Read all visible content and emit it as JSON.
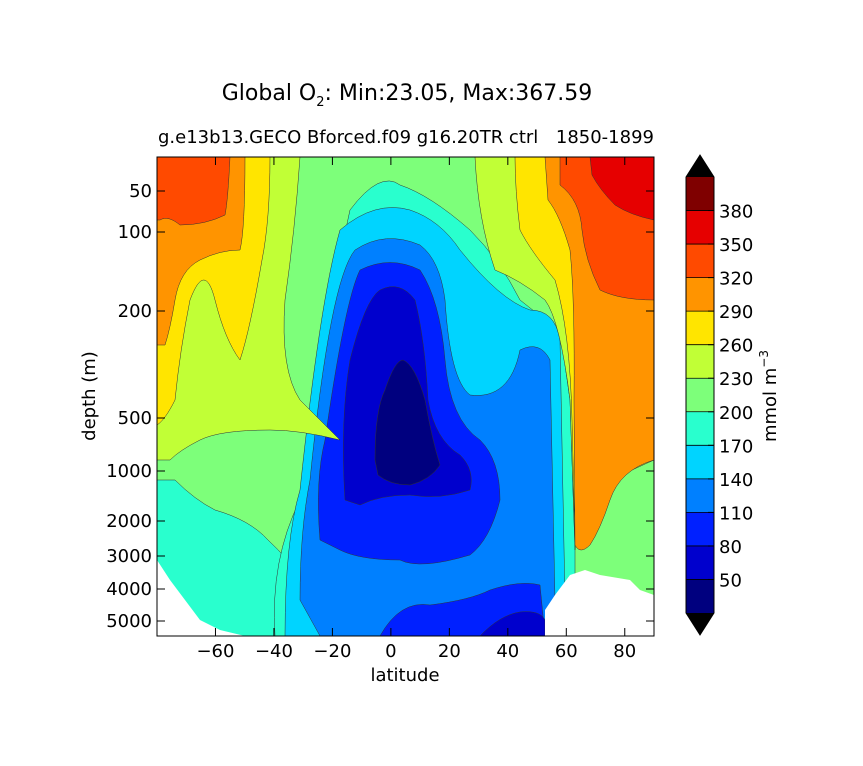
{
  "chart_data": {
    "type": "heatmap",
    "title": "Global O",
    "title_subscript": "2",
    "title_rest": ": Min:23.05, Max:367.59",
    "subtitle_left": "g.e13b13.GECO Bforced.f09 g16.20TR ctrl",
    "subtitle_right": "1850-1899",
    "xlabel": "latitude",
    "ylabel": "depth (m)",
    "xlim": [
      -80,
      90
    ],
    "x_ticks": [
      -60,
      -40,
      -20,
      0,
      20,
      40,
      60,
      80
    ],
    "x_tick_labels": [
      "−60",
      "−40",
      "−20",
      "0",
      "20",
      "40",
      "60",
      "80"
    ],
    "y_scale": "custom-stretched",
    "y_ticks": [
      50,
      100,
      200,
      500,
      1000,
      2000,
      3000,
      4000,
      5000
    ],
    "y_tick_labels": [
      "50",
      "100",
      "200",
      "500",
      "1000",
      "2000",
      "3000",
      "4000",
      "5000"
    ],
    "colorbar": {
      "label_main": "mmol m",
      "label_exp": "−3",
      "levels": [
        20,
        50,
        80,
        110,
        140,
        170,
        200,
        230,
        260,
        290,
        320,
        350,
        380,
        410
      ],
      "tick_labels": [
        "50",
        "80",
        "110",
        "140",
        "170",
        "200",
        "230",
        "260",
        "290",
        "320",
        "350",
        "380"
      ],
      "colors": [
        "#00007f",
        "#0000cd",
        "#0020ff",
        "#0080ff",
        "#00d4ff",
        "#29ffce",
        "#7dff7a",
        "#c1ff36",
        "#ffe500",
        "#ff9400",
        "#ff4a00",
        "#e60000",
        "#7f0000"
      ],
      "extend_low_color": "#000000",
      "extend_high_color": "#000000"
    },
    "grid": false,
    "min": 23.05,
    "max": 367.59
  }
}
